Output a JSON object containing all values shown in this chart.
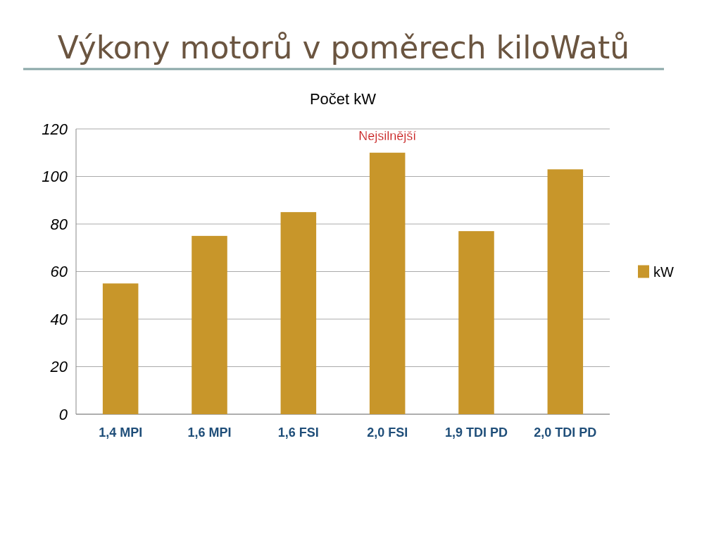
{
  "chart_data": {
    "type": "bar",
    "title": "Výkony motorů v poměrech kiloWatů",
    "subtitle": "Počet kW",
    "categories": [
      "1,4 MPI",
      "1,6 MPI",
      "1,6 FSI",
      "2,0 FSI",
      "1,9 TDI PD",
      "2,0 TDI PD"
    ],
    "series": [
      {
        "name": "kW",
        "color": "#c8962a",
        "values": [
          55,
          75,
          85,
          110,
          77,
          103
        ]
      }
    ],
    "ylim": [
      0,
      120
    ],
    "yticks": [
      0,
      20,
      40,
      60,
      80,
      100,
      120
    ],
    "grid": "y",
    "legend": "right",
    "annotations": [
      {
        "text": "Nejsilnější",
        "x": "2,0 FSI",
        "y": 110
      }
    ]
  }
}
